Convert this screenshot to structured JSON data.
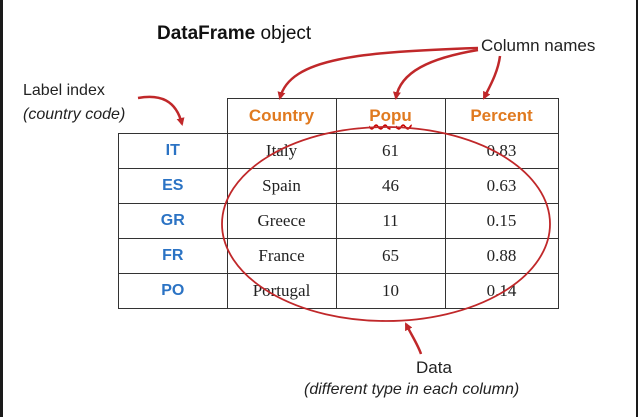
{
  "title": {
    "bold": "DataFrame",
    "rest": " object"
  },
  "annotations": {
    "label_index": "Label index",
    "label_index_sub": "(country code)",
    "column_names": "Column names",
    "data": "Data",
    "data_sub": "(different type in each column)"
  },
  "table": {
    "headers": [
      "Country",
      "Popu",
      "Percent"
    ],
    "rows": [
      {
        "index": "IT",
        "country": "Italy",
        "popu": "61",
        "percent": "0.83"
      },
      {
        "index": "ES",
        "country": "Spain",
        "popu": "46",
        "percent": "0.63"
      },
      {
        "index": "GR",
        "country": "Greece",
        "popu": "11",
        "percent": "0.15"
      },
      {
        "index": "FR",
        "country": "France",
        "popu": "65",
        "percent": "0.88"
      },
      {
        "index": "PO",
        "country": "Portugal",
        "popu": "10",
        "percent": "0.14"
      }
    ]
  },
  "colors": {
    "header": "#e07a20",
    "index": "#2b73c4",
    "arrows": "#c0282a"
  }
}
